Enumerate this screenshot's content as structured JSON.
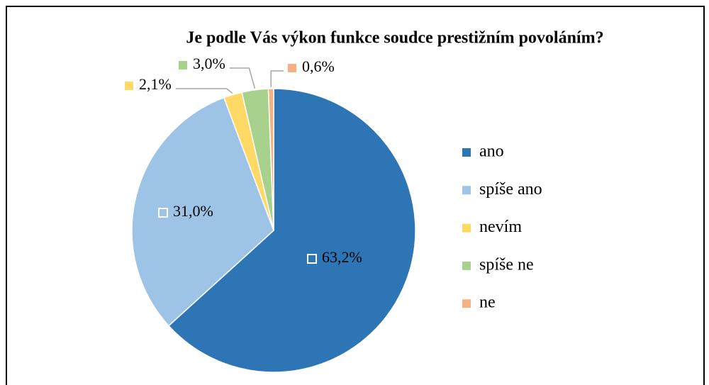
{
  "chart_data": {
    "type": "pie",
    "title": "Je podle Vás výkon funkce soudce prestižním povoláním?",
    "categories": [
      "ano",
      "spíše ano",
      "nevím",
      "spíše ne",
      "ne"
    ],
    "values": [
      63.2,
      31.0,
      2.1,
      3.0,
      0.6
    ],
    "value_labels": [
      "63,2%",
      "31,0%",
      "2,1%",
      "3,0%",
      "0,6%"
    ],
    "colors": [
      "#2e75b6",
      "#9dc3e6",
      "#ffd966",
      "#a9d18e",
      "#f4b183"
    ],
    "legend": "right"
  }
}
